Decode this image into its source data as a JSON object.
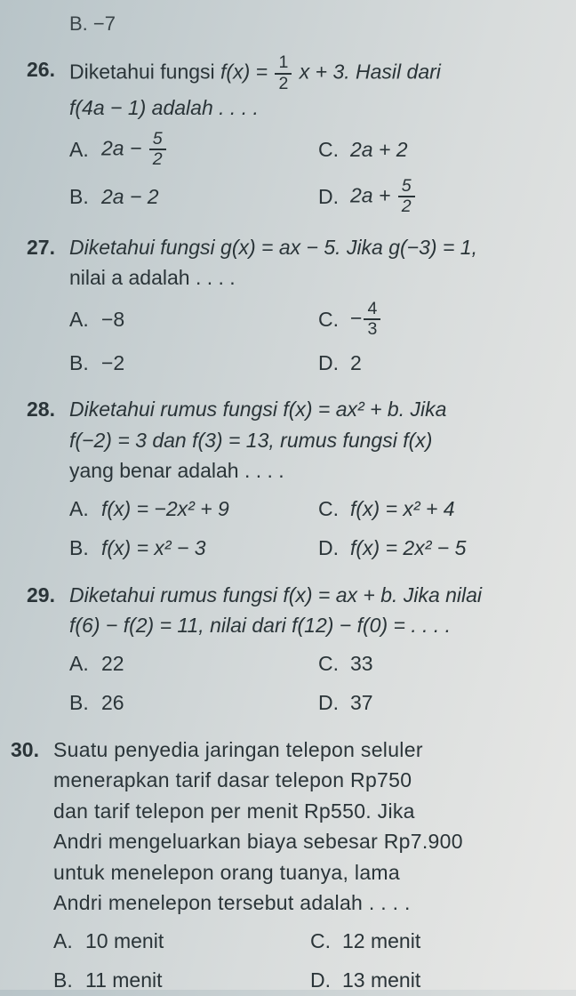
{
  "partial": {
    "b": "B.  −7"
  },
  "q26": {
    "num": "26.",
    "line1_pre": "Diketahui fungsi ",
    "line1_fx": "f(x) = ",
    "frac_n": "1",
    "frac_d": "2",
    "line1_post": "x + 3. Hasil dari",
    "line2": "f(4a − 1) adalah . . . .",
    "A_l": "A.",
    "A_pre": "2a − ",
    "A_fn": "5",
    "A_fd": "2",
    "B_l": "B.",
    "B": "2a − 2",
    "C_l": "C.",
    "C": "2a + 2",
    "D_l": "D.",
    "D_pre": "2a + ",
    "D_fn": "5",
    "D_fd": "2"
  },
  "q27": {
    "num": "27.",
    "line1": "Diketahui fungsi g(x) = ax − 5. Jika g(−3) = 1,",
    "line2": "nilai a adalah . . . .",
    "A_l": "A.",
    "A": "−8",
    "B_l": "B.",
    "B": "−2",
    "C_l": "C.",
    "C_pre": "−",
    "C_fn": "4",
    "C_fd": "3",
    "D_l": "D.",
    "D": "2"
  },
  "q28": {
    "num": "28.",
    "line1": "Diketahui rumus fungsi f(x) = ax² + b. Jika",
    "line2": "f(−2) = 3 dan f(3) = 13, rumus fungsi f(x)",
    "line3": "yang benar adalah . . . .",
    "A_l": "A.",
    "A": "f(x) = −2x² + 9",
    "B_l": "B.",
    "B": "f(x) = x² − 3",
    "C_l": "C.",
    "C": "f(x) = x² + 4",
    "D_l": "D.",
    "D": "f(x) = 2x² − 5"
  },
  "q29": {
    "num": "29.",
    "line1": "Diketahui rumus fungsi f(x) = ax + b. Jika nilai",
    "line2": "f(6) − f(2) = 11, nilai dari f(12) − f(0) = . . . .",
    "A_l": "A.",
    "A": "22",
    "B_l": "B.",
    "B": "26",
    "C_l": "C.",
    "C": "33",
    "D_l": "D.",
    "D": "37"
  },
  "q30": {
    "num": "30.",
    "line1": "Suatu penyedia jaringan telepon seluler",
    "line2": "menerapkan tarif dasar telepon Rp750",
    "line3": "dan tarif telepon per menit Rp550. Jika",
    "line4": "Andri mengeluarkan biaya sebesar Rp7.900",
    "line5": "untuk menelepon orang tuanya, lama",
    "line6": "Andri menelepon tersebut adalah . . . .",
    "A_l": "A.",
    "A": "10 menit",
    "B_l": "B.",
    "B": "11 menit",
    "C_l": "C.",
    "C": "12 menit",
    "D_l": "D.",
    "D": "13 menit"
  }
}
